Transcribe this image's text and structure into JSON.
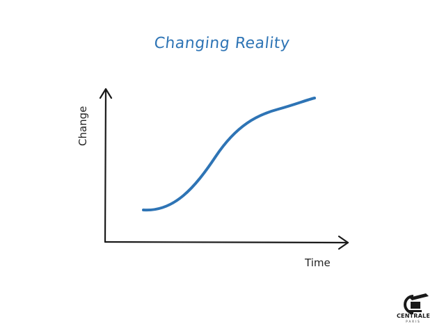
{
  "slide": {
    "title": "Changing Reality",
    "title_color": "#2e74b5"
  },
  "diagram": {
    "y_axis_label": "Change",
    "x_axis_label": "Time",
    "curve_color": "#2e74b5",
    "axis_color": "#1a1a1a",
    "curve_shape": "s-curve"
  },
  "logo": {
    "name": "CENTRALE",
    "sub": "PARIS",
    "icon": "centrale-paris-logo-icon"
  }
}
